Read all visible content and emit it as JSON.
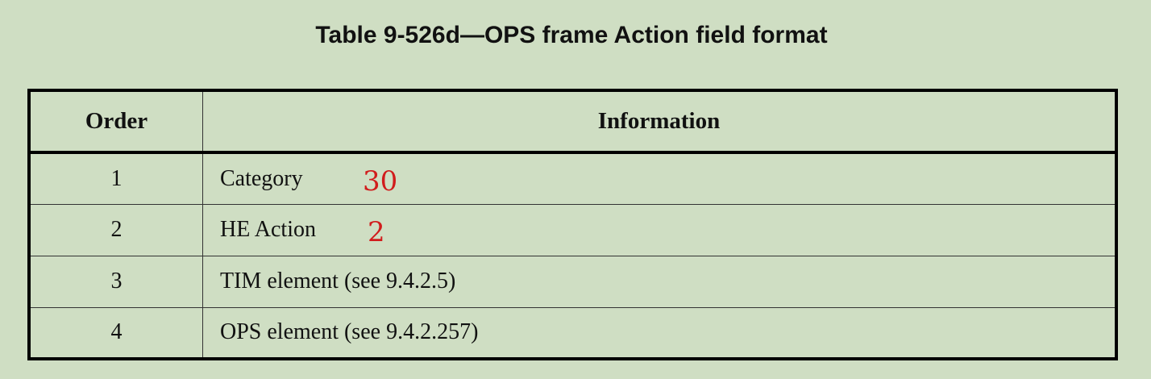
{
  "caption": "Table 9-526d—OPS frame Action field format",
  "table": {
    "headers": [
      "Order",
      "Information"
    ],
    "rows": [
      {
        "order": "1",
        "information": "Category",
        "annotation": "30"
      },
      {
        "order": "2",
        "information": "HE Action",
        "annotation": "2"
      },
      {
        "order": "3",
        "information": "TIM element (see 9.4.2.5)"
      },
      {
        "order": "4",
        "information": "OPS element (see 9.4.2.257)"
      }
    ]
  },
  "colors": {
    "background": "#cfdec3",
    "annotation": "#d11c1c",
    "border": "#000000"
  }
}
